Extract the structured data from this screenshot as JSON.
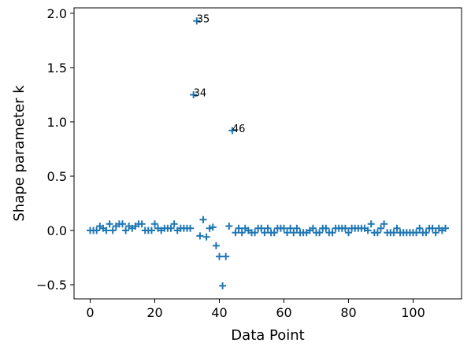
{
  "chart_data": {
    "type": "scatter",
    "title": "",
    "xlabel": "Data Point",
    "ylabel": "Shape parameter k",
    "xlim": [
      -5,
      115
    ],
    "ylim": [
      -0.63,
      2.05
    ],
    "xticks": [
      0,
      20,
      40,
      60,
      80,
      100
    ],
    "yticks": [
      -0.5,
      0.0,
      0.5,
      1.0,
      1.5,
      2.0
    ],
    "xtick_labels": [
      "0",
      "20",
      "40",
      "60",
      "80",
      "100"
    ],
    "ytick_labels": [
      "−0.5",
      "0.0",
      "0.5",
      "1.0",
      "1.5",
      "2.0"
    ],
    "grid": false,
    "marker": "plus",
    "color": "#1f77b4",
    "series": [
      {
        "x": [
          0,
          1,
          2,
          3,
          4,
          5,
          6,
          7,
          8,
          9,
          10,
          11,
          12,
          13,
          14,
          15,
          16,
          17,
          18,
          19,
          20,
          21,
          22,
          23,
          24,
          25,
          26,
          27,
          28,
          29,
          30,
          31,
          32,
          33,
          34,
          35,
          36,
          37,
          38,
          39,
          40,
          41,
          42,
          43,
          44,
          45,
          46,
          47,
          48,
          49,
          50,
          51,
          52,
          53,
          54,
          55,
          56,
          57,
          58,
          59,
          60,
          61,
          62,
          63,
          64,
          65,
          66,
          67,
          68,
          69,
          70,
          71,
          72,
          73,
          74,
          75,
          76,
          77,
          78,
          79,
          80,
          81,
          82,
          83,
          84,
          85,
          86,
          87,
          88,
          89,
          90,
          91,
          92,
          93,
          94,
          95,
          96,
          97,
          98,
          99,
          100,
          101,
          102,
          103,
          104,
          105,
          106,
          107,
          108,
          109,
          110
        ],
        "y": [
          0.0,
          0.0,
          0.0,
          0.04,
          0.02,
          0.0,
          0.06,
          0.0,
          0.04,
          0.06,
          0.06,
          0.0,
          0.04,
          0.02,
          0.04,
          0.06,
          0.06,
          0.0,
          0.0,
          0.0,
          0.06,
          0.02,
          0.0,
          0.02,
          0.02,
          0.02,
          0.06,
          0.0,
          0.02,
          0.02,
          0.02,
          0.02,
          1.25,
          1.93,
          -0.05,
          0.1,
          -0.06,
          0.02,
          0.03,
          -0.14,
          -0.24,
          -0.51,
          -0.24,
          0.04,
          0.92,
          -0.02,
          0.02,
          -0.02,
          0.02,
          0.0,
          -0.02,
          -0.02,
          0.02,
          0.02,
          -0.02,
          0.02,
          -0.02,
          -0.02,
          0.02,
          0.02,
          0.02,
          -0.02,
          0.02,
          -0.02,
          0.02,
          -0.02,
          -0.02,
          -0.02,
          0.0,
          0.02,
          -0.02,
          -0.02,
          0.02,
          0.02,
          -0.02,
          -0.02,
          0.02,
          0.02,
          0.02,
          0.02,
          -0.02,
          0.02,
          0.02,
          0.02,
          0.02,
          0.02,
          0.0,
          0.06,
          -0.02,
          -0.02,
          0.02,
          0.06,
          -0.02,
          -0.02,
          -0.02,
          0.02,
          -0.02,
          -0.02,
          -0.02,
          -0.02,
          -0.02,
          -0.02,
          0.02,
          -0.02,
          -0.02,
          0.02,
          0.02,
          -0.02,
          0.02,
          0.0,
          0.02
        ]
      }
    ],
    "annotations": [
      {
        "text": "35",
        "x": 35,
        "y": 1.93
      },
      {
        "text": "34",
        "x": 34,
        "y": 1.25
      },
      {
        "text": "46",
        "x": 46,
        "y": 0.92
      }
    ]
  }
}
